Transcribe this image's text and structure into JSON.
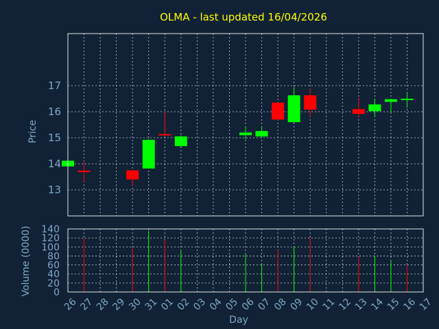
{
  "chart_data": {
    "type": "candlestick",
    "title": "OLMA - last updated 16/04/2026",
    "xlabel": "Day",
    "price_panel": {
      "ylabel": "Price",
      "y_ticks": [
        13,
        14,
        15,
        16,
        17
      ],
      "ylim": [
        12.0,
        19.0
      ]
    },
    "volume_panel": {
      "ylabel": "Volume (0000)",
      "y_ticks": [
        0,
        20,
        40,
        60,
        80,
        100,
        120,
        140
      ],
      "ylim": [
        0,
        140
      ]
    },
    "x_tick_labels": [
      "26",
      "27",
      "28",
      "29",
      "30",
      "31",
      "01",
      "02",
      "03",
      "04",
      "05",
      "06",
      "07",
      "08",
      "09",
      "10",
      "11",
      "12",
      "13",
      "14",
      "15",
      "16",
      "17"
    ],
    "grid": true,
    "colors": {
      "background": "#112236",
      "title": "#ffff00",
      "axis_text": "#7ea8c7",
      "up": "#00ff00",
      "down": "#ff0000",
      "grid": "#c8d0d8",
      "frame": "#e6e6e6"
    },
    "candles": [
      {
        "day": "26",
        "open": 13.9,
        "high": 14.15,
        "low": 13.85,
        "close": 14.12
      },
      {
        "day": "27",
        "open": 13.74,
        "high": 14.1,
        "low": 13.3,
        "close": 13.68
      },
      {
        "day": "30",
        "open": 13.75,
        "high": 13.75,
        "low": 13.15,
        "close": 13.4
      },
      {
        "day": "31",
        "open": 13.82,
        "high": 14.95,
        "low": 13.82,
        "close": 14.92
      },
      {
        "day": "01",
        "open": 15.14,
        "high": 16.0,
        "low": 15.1,
        "close": 15.1
      },
      {
        "day": "02",
        "open": 14.68,
        "high": 15.1,
        "low": 14.65,
        "close": 15.05
      },
      {
        "day": "06",
        "open": 15.1,
        "high": 15.45,
        "low": 14.95,
        "close": 15.2
      },
      {
        "day": "07",
        "open": 15.05,
        "high": 15.45,
        "low": 15.0,
        "close": 15.26
      },
      {
        "day": "08",
        "open": 16.35,
        "high": 16.35,
        "low": 15.68,
        "close": 15.7
      },
      {
        "day": "09",
        "open": 15.6,
        "high": 16.95,
        "low": 15.58,
        "close": 16.63
      },
      {
        "day": "10",
        "open": 16.63,
        "high": 16.9,
        "low": 15.8,
        "close": 16.08
      },
      {
        "day": "13",
        "open": 16.1,
        "high": 16.55,
        "low": 15.8,
        "close": 15.92
      },
      {
        "day": "14",
        "open": 16.02,
        "high": 16.5,
        "low": 15.8,
        "close": 16.28
      },
      {
        "day": "15",
        "open": 16.38,
        "high": 16.5,
        "low": 15.95,
        "close": 16.48
      },
      {
        "day": "16",
        "open": 16.5,
        "high": 16.75,
        "low": 16.15,
        "close": 16.5
      }
    ],
    "volume": [
      {
        "day": "27",
        "value": 120,
        "direction": "down"
      },
      {
        "day": "30",
        "value": 97,
        "direction": "down"
      },
      {
        "day": "31",
        "value": 135,
        "direction": "up"
      },
      {
        "day": "01",
        "value": 116,
        "direction": "down"
      },
      {
        "day": "02",
        "value": 92,
        "direction": "up"
      },
      {
        "day": "06",
        "value": 85,
        "direction": "up"
      },
      {
        "day": "07",
        "value": 63,
        "direction": "up"
      },
      {
        "day": "08",
        "value": 93,
        "direction": "down"
      },
      {
        "day": "09",
        "value": 102,
        "direction": "up"
      },
      {
        "day": "10",
        "value": 122,
        "direction": "down"
      },
      {
        "day": "13",
        "value": 78,
        "direction": "down"
      },
      {
        "day": "14",
        "value": 80,
        "direction": "up"
      },
      {
        "day": "15",
        "value": 70,
        "direction": "up"
      },
      {
        "day": "16",
        "value": 60,
        "direction": "down"
      }
    ]
  }
}
